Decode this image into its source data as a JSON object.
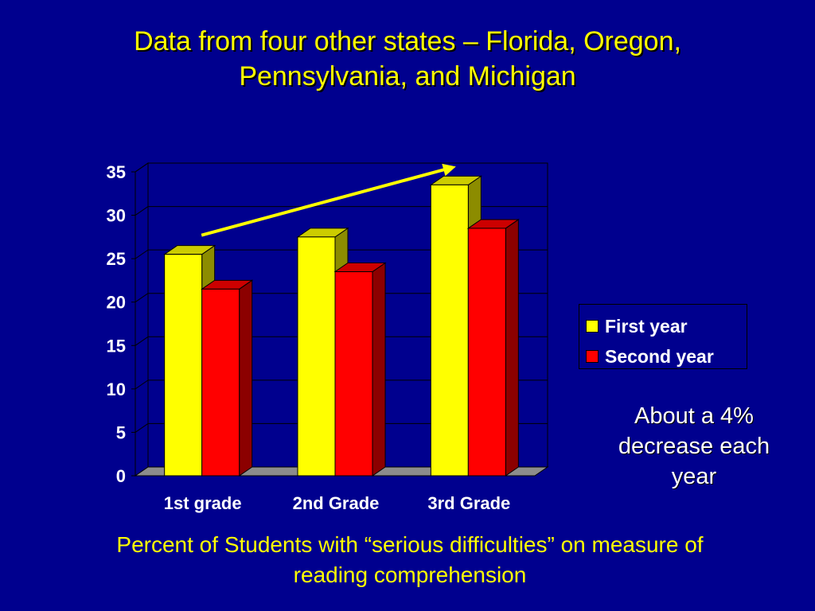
{
  "title": {
    "line1": "Data from four other states – Florida, Oregon,",
    "line2": "Pennsylvania, and Michigan"
  },
  "annotation": {
    "line1": "About a 4%",
    "line2": "decrease each",
    "line3": "year"
  },
  "caption": {
    "line1": "Percent of Students with “serious difficulties” on measure of",
    "line2": "reading comprehension"
  },
  "colors": {
    "background": "#00008e",
    "first_year": "#ffff00",
    "second_year": "#ff0000",
    "arrow": "#ffff00"
  },
  "chart_data": {
    "type": "bar",
    "style": "3d-clustered-column",
    "categories": [
      "1st grade",
      "2nd Grade",
      "3rd Grade"
    ],
    "series": [
      {
        "name": "First year",
        "values": [
          25.5,
          27.5,
          33.5
        ]
      },
      {
        "name": "Second year",
        "values": [
          21.5,
          23.5,
          28.5
        ]
      }
    ],
    "ylim": [
      0,
      35
    ],
    "yticks": [
      0,
      5,
      10,
      15,
      20,
      25,
      30,
      35
    ],
    "grid": true,
    "legend_position": "right",
    "trend_arrow": "upward across First year bars"
  }
}
